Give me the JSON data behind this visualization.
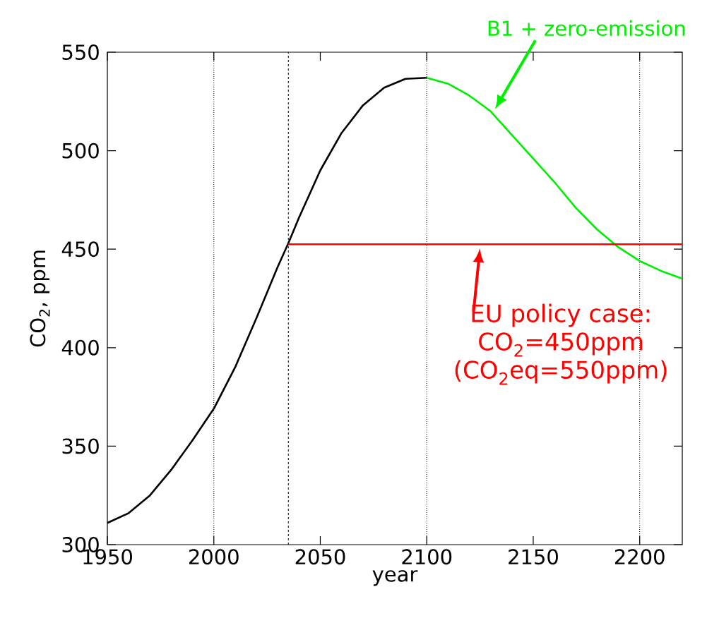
{
  "chart_data": {
    "type": "line",
    "xlabel": "year",
    "ylabel": "CO$_{2}$, ppm",
    "xlim": [
      1950,
      2220
    ],
    "ylim": [
      300,
      550
    ],
    "xticks": [
      1950,
      2000,
      2050,
      2100,
      2150,
      2200
    ],
    "yticks": [
      300,
      350,
      400,
      450,
      500,
      550
    ],
    "marker": "none",
    "line_style": "solid",
    "series": [
      {
        "color": "#000000",
        "x": [
          1950,
          1960,
          1970,
          1980,
          1990,
          2000,
          2010,
          2020,
          2030,
          2035,
          2040,
          2050,
          2060,
          2070,
          2080,
          2090,
          2100
        ],
        "values": [
          311,
          316,
          325,
          338,
          353,
          369,
          390,
          415,
          441,
          453,
          466,
          490,
          509,
          523,
          532,
          536.5,
          537
        ]
      },
      {
        "color": "#00ee00",
        "x": [
          2100,
          2110,
          2120,
          2130,
          2140,
          2150,
          2160,
          2170,
          2180,
          2190,
          2200,
          2210,
          2220
        ],
        "values": [
          537,
          534,
          528,
          520,
          508,
          496,
          484,
          471,
          460,
          451,
          444,
          439,
          435
        ]
      },
      {
        "color": "#ff0000",
        "x": [
          2035,
          2220
        ],
        "values": [
          452.5,
          452.5
        ]
      }
    ],
    "ref_lines": [
      {
        "axis": "x",
        "value": 2000,
        "color": "#000000",
        "line_style": "dotted"
      },
      {
        "axis": "x",
        "value": 2100,
        "color": "#000000",
        "line_style": "dotted"
      },
      {
        "axis": "x",
        "value": 2200,
        "color": "#000000",
        "line_style": "dotted"
      },
      {
        "axis": "x",
        "value": 2035,
        "color": "#000000",
        "line_style": "dashed"
      }
    ],
    "annotations": [
      "B1 + zero-emission",
      {
        "text": "EU policy case:",
        "x": 2125,
        "y": 452.5
      },
      "CO$_{2}$=450ppm",
      "(CO$_{2}$eq=550ppm)"
    ]
  }
}
